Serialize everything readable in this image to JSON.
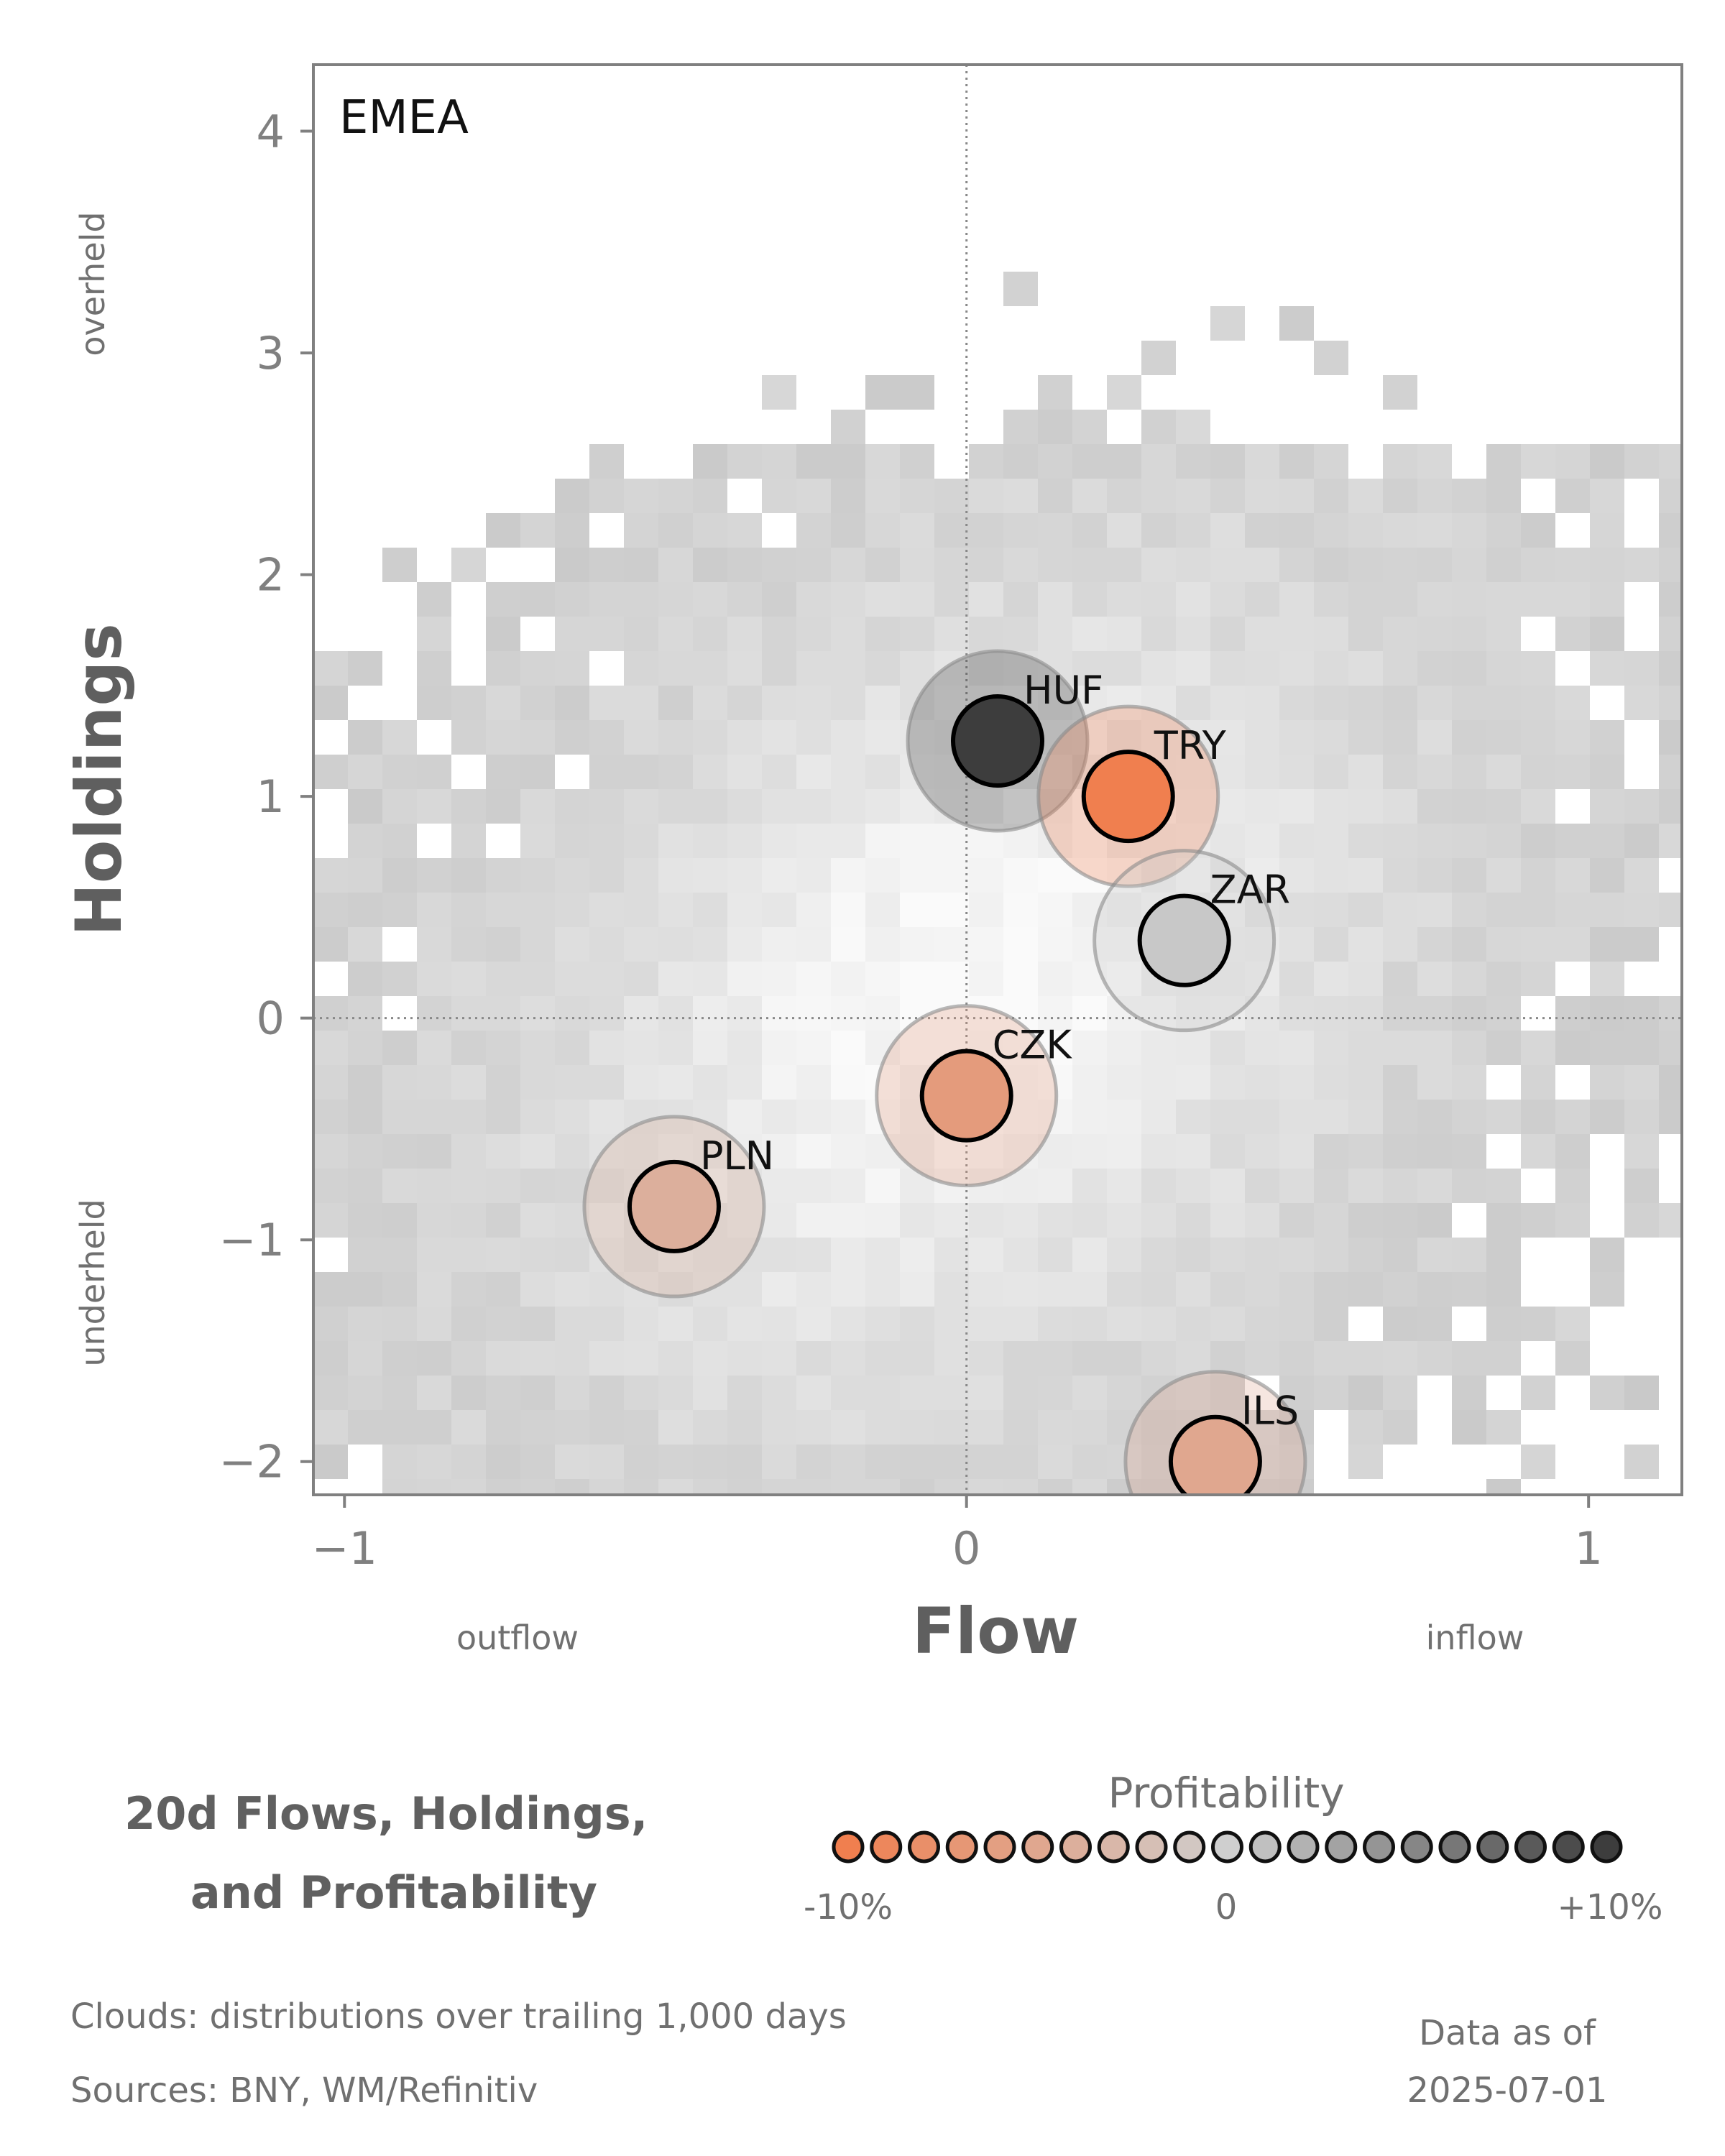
{
  "chart_data": {
    "type": "scatter",
    "title": "20d Flows, Holdings, and Profitability",
    "title_lines": [
      "20d Flows, Holdings,",
      "and Profitability"
    ],
    "panel_label": "EMEA",
    "xlabel": "Flow",
    "ylabel": "Holdings",
    "xlim": [
      -1.05,
      1.15
    ],
    "ylim": [
      -2.15,
      4.3
    ],
    "x_ticks": [
      -1,
      0,
      1
    ],
    "y_ticks": [
      -2,
      -1,
      0,
      1,
      2,
      3,
      4
    ],
    "x_tick_labels": [
      "−1",
      "0",
      "1"
    ],
    "y_tick_labels": [
      "−2",
      "−1",
      "0",
      "1",
      "2",
      "3",
      "4"
    ],
    "x_side_labels": {
      "low": "outflow",
      "high": "inflow"
    },
    "y_side_labels": {
      "low": "underheld",
      "high": "overheld"
    },
    "reference_lines": {
      "x": 0,
      "y": 0,
      "style": "dotted"
    },
    "background": "grey 2D histogram clouds (distributions over trailing 1,000 days)",
    "points": [
      {
        "label": "HUF",
        "x": 0.05,
        "y": 1.25,
        "profitability": 10.0
      },
      {
        "label": "TRY",
        "x": 0.26,
        "y": 1.0,
        "profitability": -10.0
      },
      {
        "label": "ZAR",
        "x": 0.35,
        "y": 0.35,
        "profitability": 0.5
      },
      {
        "label": "CZK",
        "x": 0.0,
        "y": -0.35,
        "profitability": -6.5
      },
      {
        "label": "PLN",
        "x": -0.47,
        "y": -0.85,
        "profitability": -4.0
      },
      {
        "label": "ILS",
        "x": 0.4,
        "y": -2.0,
        "profitability": -5.0
      }
    ],
    "legend": {
      "title": "Profitability",
      "min_label": "-10%",
      "mid_label": "0",
      "max_label": "+10%",
      "range": [
        -10,
        10
      ],
      "steps": 21,
      "colors": {
        "negative": "#f07f4f",
        "neutral": "#cfcfcf",
        "positive": "#3d3d3d"
      }
    },
    "grid": false
  },
  "footer": {
    "clouds_note": "Clouds:  distributions over trailing 1,000 days",
    "sources": "Sources:  BNY, WM/Refinitiv",
    "data_as_of_label": "Data as of",
    "data_as_of_date": "2025-07-01"
  }
}
